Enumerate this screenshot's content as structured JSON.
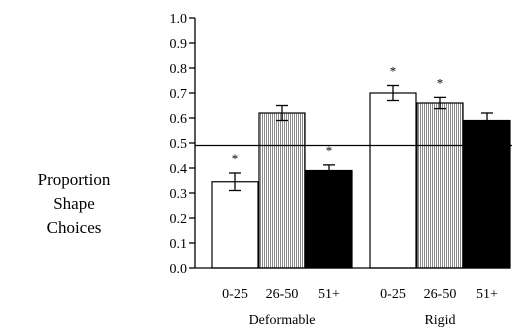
{
  "chart_data": {
    "type": "bar",
    "ylabel_lines": [
      "Proportion",
      "Shape",
      "Choices"
    ],
    "ylim": [
      0,
      1
    ],
    "yticks": [
      "0.0",
      "0.1",
      "0.2",
      "0.3",
      "0.4",
      "0.5",
      "0.6",
      "0.7",
      "0.8",
      "0.9",
      "1.0"
    ],
    "reference_line": 0.49,
    "groups": [
      {
        "label": "Deformable",
        "bars": [
          {
            "category": "0-25",
            "value": 0.345,
            "error": 0.07,
            "color": "#ffffff",
            "pattern": "solid",
            "star": "*"
          },
          {
            "category": "26-50",
            "value": 0.62,
            "error": 0.06,
            "color": "#b0b0b0",
            "pattern": "vertical-lines",
            "star": ""
          },
          {
            "category": "51+",
            "value": 0.39,
            "error": 0.045,
            "color": "#000000",
            "pattern": "solid",
            "star": "*"
          }
        ]
      },
      {
        "label": "Rigid",
        "bars": [
          {
            "category": "0-25",
            "value": 0.7,
            "error": 0.06,
            "color": "#ffffff",
            "pattern": "solid",
            "star": "*"
          },
          {
            "category": "26-50",
            "value": 0.66,
            "error": 0.045,
            "color": "#b0b0b0",
            "pattern": "vertical-lines",
            "star": "*"
          },
          {
            "category": "51+",
            "value": 0.59,
            "error": 0.06,
            "color": "#000000",
            "pattern": "solid",
            "star": ""
          }
        ]
      }
    ]
  }
}
